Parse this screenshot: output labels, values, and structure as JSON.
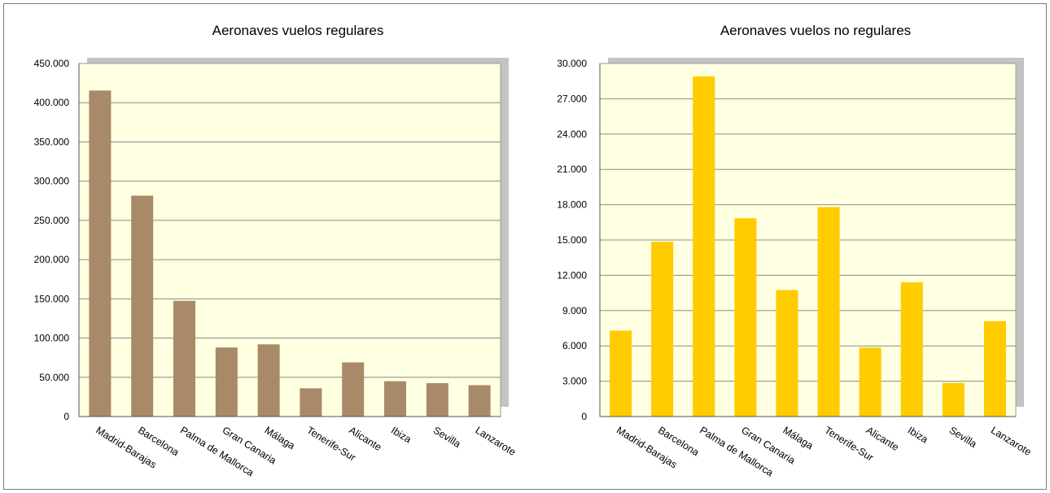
{
  "chart_data": [
    {
      "type": "bar",
      "title": "Aeronaves vuelos regulares",
      "categories": [
        "Madrid-Barajas",
        "Barcelona",
        "Palma de Mallorca",
        "Gran Canaria",
        "Málaga",
        "Tenerife-Sur",
        "Alicante",
        "Ibiza",
        "Sevilla",
        "Lanzarote"
      ],
      "values": [
        415500,
        281500,
        147500,
        88000,
        92000,
        36000,
        69000,
        45000,
        42500,
        40000
      ],
      "ylim": [
        0,
        450000
      ],
      "yticks": [
        "0",
        "50.000",
        "100.000",
        "150.000",
        "200.000",
        "250.000",
        "300.000",
        "350.000",
        "400.000",
        "450.000"
      ],
      "bar_color": "#a88a68",
      "plot_background": "#ffffe1",
      "grid": true,
      "legend": "none"
    },
    {
      "type": "bar",
      "title": "Aeronaves vuelos no regulares",
      "categories": [
        "Madrid-Barajas",
        "Barcelona",
        "Palma de Mallorca",
        "Gran Canaria",
        "Málaga",
        "Tenerife-Sur",
        "Alicante",
        "Ibiza",
        "Sevilla",
        "Lanzarote"
      ],
      "values": [
        7300,
        14850,
        28900,
        16850,
        10750,
        17800,
        5850,
        11400,
        2850,
        8100
      ],
      "ylim": [
        0,
        30000
      ],
      "yticks": [
        "0",
        "3.000",
        "6.000",
        "9.000",
        "12.000",
        "15.000",
        "18.000",
        "21.000",
        "24.000",
        "27.000",
        "30.000"
      ],
      "bar_color": "#ffcc00",
      "plot_background": "#ffffe1",
      "grid": true,
      "legend": "none"
    }
  ]
}
